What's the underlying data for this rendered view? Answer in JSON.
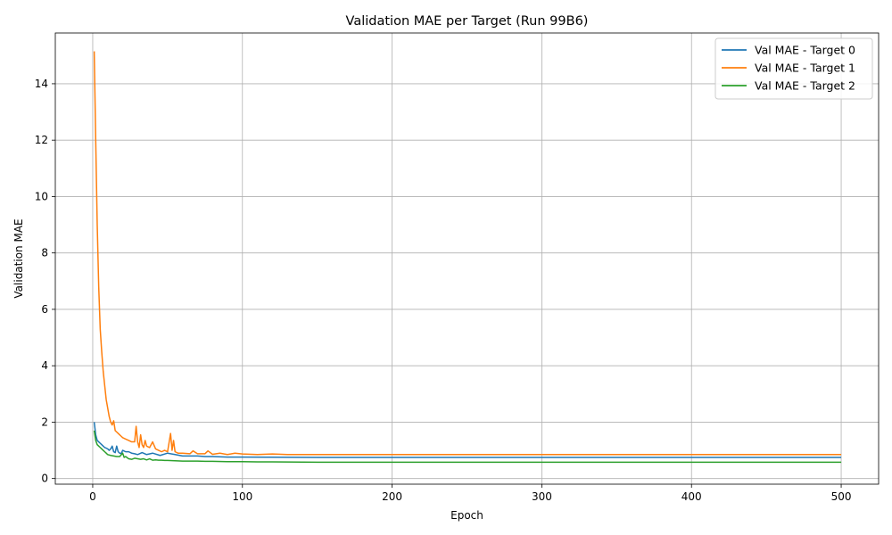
{
  "chart_data": {
    "type": "line",
    "title": "Validation MAE per Target (Run 99B6)",
    "xlabel": "Epoch",
    "ylabel": "Validation MAE",
    "xlim": [
      -25,
      525
    ],
    "ylim": [
      -0.2,
      15.8
    ],
    "xticks": [
      0,
      100,
      200,
      300,
      400,
      500
    ],
    "yticks": [
      0,
      2,
      4,
      6,
      8,
      10,
      12,
      14
    ],
    "grid": true,
    "legend_position": "top-right",
    "series": [
      {
        "name": "Val MAE - Target 0",
        "color": "#1f77b4",
        "points": [
          [
            1,
            2.0
          ],
          [
            2,
            1.55
          ],
          [
            3,
            1.35
          ],
          [
            4,
            1.3
          ],
          [
            5,
            1.25
          ],
          [
            6,
            1.2
          ],
          [
            7,
            1.15
          ],
          [
            8,
            1.1
          ],
          [
            9,
            1.08
          ],
          [
            10,
            1.05
          ],
          [
            11,
            1.0
          ],
          [
            12,
            1.05
          ],
          [
            13,
            1.15
          ],
          [
            14,
            0.95
          ],
          [
            15,
            0.92
          ],
          [
            16,
            1.15
          ],
          [
            17,
            0.95
          ],
          [
            18,
            0.9
          ],
          [
            19,
            0.88
          ],
          [
            20,
            1.0
          ],
          [
            22,
            0.95
          ],
          [
            24,
            0.95
          ],
          [
            26,
            0.9
          ],
          [
            28,
            0.88
          ],
          [
            30,
            0.85
          ],
          [
            33,
            0.92
          ],
          [
            36,
            0.85
          ],
          [
            40,
            0.9
          ],
          [
            45,
            0.82
          ],
          [
            50,
            0.9
          ],
          [
            55,
            0.85
          ],
          [
            60,
            0.8
          ],
          [
            65,
            0.8
          ],
          [
            70,
            0.8
          ],
          [
            75,
            0.78
          ],
          [
            80,
            0.78
          ],
          [
            90,
            0.76
          ],
          [
            100,
            0.76
          ],
          [
            150,
            0.75
          ],
          [
            200,
            0.75
          ],
          [
            300,
            0.75
          ],
          [
            400,
            0.75
          ],
          [
            500,
            0.75
          ]
        ]
      },
      {
        "name": "Val MAE - Target 1",
        "color": "#ff7f0e",
        "points": [
          [
            1,
            15.15
          ],
          [
            2,
            12.0
          ],
          [
            3,
            9.0
          ],
          [
            4,
            6.8
          ],
          [
            5,
            5.3
          ],
          [
            6,
            4.5
          ],
          [
            7,
            3.8
          ],
          [
            8,
            3.3
          ],
          [
            9,
            2.8
          ],
          [
            10,
            2.5
          ],
          [
            11,
            2.2
          ],
          [
            12,
            2.0
          ],
          [
            13,
            1.9
          ],
          [
            14,
            2.05
          ],
          [
            15,
            1.7
          ],
          [
            16,
            1.65
          ],
          [
            17,
            1.6
          ],
          [
            18,
            1.55
          ],
          [
            19,
            1.5
          ],
          [
            20,
            1.45
          ],
          [
            22,
            1.4
          ],
          [
            24,
            1.35
          ],
          [
            26,
            1.3
          ],
          [
            28,
            1.3
          ],
          [
            29,
            1.85
          ],
          [
            30,
            1.3
          ],
          [
            31,
            1.1
          ],
          [
            32,
            1.55
          ],
          [
            33,
            1.2
          ],
          [
            34,
            1.1
          ],
          [
            35,
            1.35
          ],
          [
            36,
            1.15
          ],
          [
            38,
            1.1
          ],
          [
            40,
            1.3
          ],
          [
            42,
            1.05
          ],
          [
            44,
            1.0
          ],
          [
            46,
            0.95
          ],
          [
            48,
            1.0
          ],
          [
            50,
            0.95
          ],
          [
            52,
            1.6
          ],
          [
            53,
            1.0
          ],
          [
            54,
            1.35
          ],
          [
            55,
            0.95
          ],
          [
            57,
            0.9
          ],
          [
            60,
            0.9
          ],
          [
            65,
            0.88
          ],
          [
            67,
            0.98
          ],
          [
            70,
            0.88
          ],
          [
            75,
            0.88
          ],
          [
            77,
            0.98
          ],
          [
            80,
            0.86
          ],
          [
            85,
            0.9
          ],
          [
            90,
            0.85
          ],
          [
            95,
            0.9
          ],
          [
            100,
            0.87
          ],
          [
            110,
            0.85
          ],
          [
            120,
            0.87
          ],
          [
            130,
            0.85
          ],
          [
            150,
            0.85
          ],
          [
            200,
            0.85
          ],
          [
            300,
            0.85
          ],
          [
            400,
            0.85
          ],
          [
            500,
            0.85
          ]
        ]
      },
      {
        "name": "Val MAE - Target 2",
        "color": "#2ca02c",
        "points": [
          [
            1,
            1.7
          ],
          [
            2,
            1.35
          ],
          [
            3,
            1.2
          ],
          [
            4,
            1.15
          ],
          [
            5,
            1.1
          ],
          [
            6,
            1.05
          ],
          [
            7,
            1.0
          ],
          [
            8,
            0.95
          ],
          [
            9,
            0.9
          ],
          [
            10,
            0.85
          ],
          [
            12,
            0.82
          ],
          [
            14,
            0.8
          ],
          [
            16,
            0.78
          ],
          [
            18,
            0.78
          ],
          [
            20,
            0.9
          ],
          [
            21,
            0.75
          ],
          [
            22,
            0.78
          ],
          [
            24,
            0.7
          ],
          [
            26,
            0.68
          ],
          [
            28,
            0.72
          ],
          [
            30,
            0.7
          ],
          [
            32,
            0.68
          ],
          [
            34,
            0.7
          ],
          [
            36,
            0.66
          ],
          [
            38,
            0.7
          ],
          [
            40,
            0.65
          ],
          [
            42,
            0.66
          ],
          [
            44,
            0.65
          ],
          [
            46,
            0.65
          ],
          [
            48,
            0.64
          ],
          [
            50,
            0.64
          ],
          [
            55,
            0.63
          ],
          [
            60,
            0.62
          ],
          [
            65,
            0.62
          ],
          [
            70,
            0.62
          ],
          [
            75,
            0.61
          ],
          [
            80,
            0.61
          ],
          [
            90,
            0.6
          ],
          [
            100,
            0.6
          ],
          [
            110,
            0.59
          ],
          [
            120,
            0.59
          ],
          [
            150,
            0.58
          ],
          [
            200,
            0.58
          ],
          [
            300,
            0.58
          ],
          [
            400,
            0.58
          ],
          [
            500,
            0.58
          ]
        ]
      }
    ]
  }
}
